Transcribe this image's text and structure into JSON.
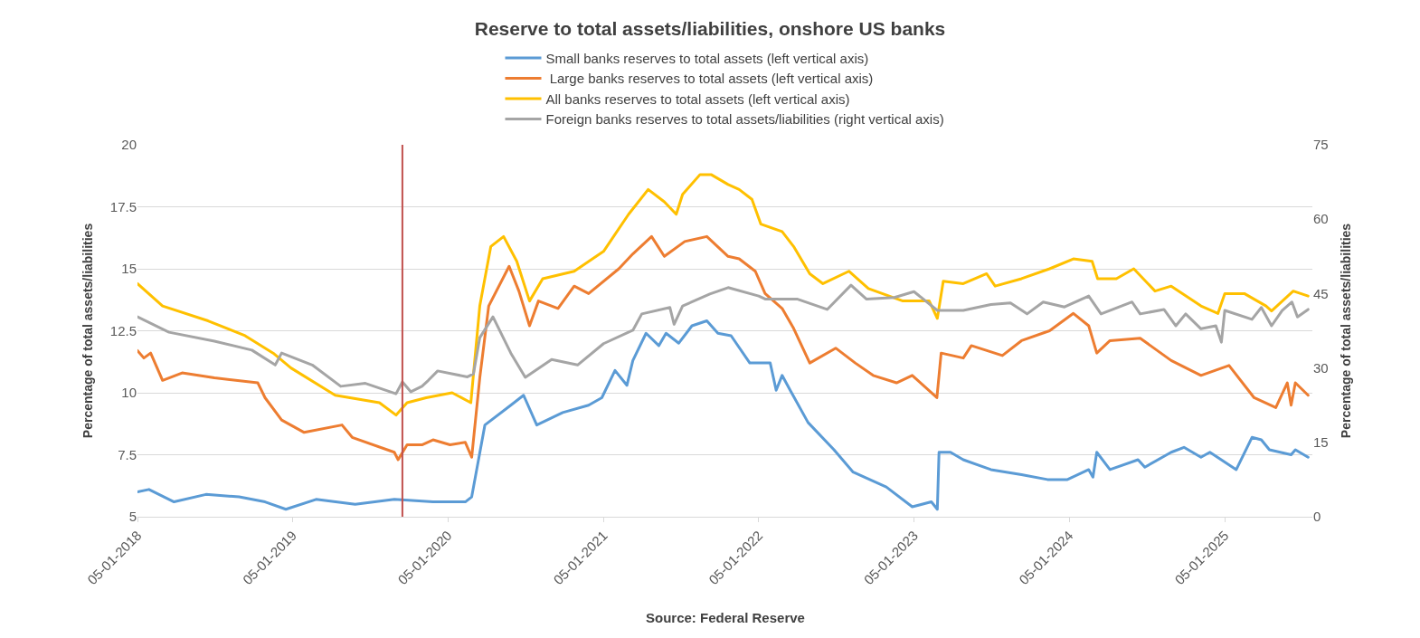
{
  "chart_data": {
    "type": "line",
    "title": "Reserve to total assets/liabilities, onshore US banks",
    "ylabel": "Percentage of total assets/liabilities",
    "y2label": "Percentage of total assets/liabilities",
    "annotations": [
      "Source: Federal Reserve"
    ],
    "legend": "top",
    "grid": "y",
    "marker": "none",
    "line_style": "solid",
    "xlim": [
      "2018-01-05",
      "2025-07-30"
    ],
    "xticks": [
      {
        "value": "2018-01-05",
        "label": "05-01-2018"
      },
      {
        "value": "2019-01-05",
        "label": "05-01-2019"
      },
      {
        "value": "2020-01-05",
        "label": "05-01-2020"
      },
      {
        "value": "2021-01-05",
        "label": "05-01-2021"
      },
      {
        "value": "2022-01-05",
        "label": "05-01-2022"
      },
      {
        "value": "2023-01-05",
        "label": "05-01-2023"
      },
      {
        "value": "2024-01-05",
        "label": "05-01-2024"
      },
      {
        "value": "2025-01-05",
        "label": "05-01-2025"
      }
    ],
    "ylim": [
      5,
      20
    ],
    "yticks": [
      5,
      {
        "value": 7.5,
        "label": "7.5"
      },
      10,
      {
        "value": 12.5,
        "label": "12.5"
      },
      15,
      {
        "value": 17.5,
        "label": "17.5"
      },
      20
    ],
    "y2lim": [
      0,
      75
    ],
    "y2ticks": [
      0,
      15,
      30,
      45,
      60,
      75
    ],
    "ref_lines": [
      {
        "axis": "x",
        "value": "2019-09-20",
        "color": "#c0504d"
      }
    ],
    "series": [
      {
        "name": "Small banks reserves to total assets (left vertical axis)",
        "color": "#5b9bd5",
        "x": [
          "2018-01-05",
          "2018-02-01",
          "2018-04-01",
          "2018-06-15",
          "2018-09-01",
          "2018-11-01",
          "2018-12-20",
          "2019-03-01",
          "2019-06-01",
          "2019-09-01",
          "2019-12-01",
          "2020-02-15",
          "2020-03-01",
          "2020-04-01",
          "2020-06-01",
          "2020-07-01",
          "2020-08-01",
          "2020-10-01",
          "2020-12-01",
          "2021-01-01",
          "2021-02-01",
          "2021-03-01",
          "2021-03-15",
          "2021-04-15",
          "2021-05-15",
          "2021-06-01",
          "2021-07-01",
          "2021-08-01",
          "2021-09-05",
          "2021-10-01",
          "2021-11-01",
          "2021-12-15",
          "2022-02-01",
          "2022-02-15",
          "2022-03-01",
          "2022-03-20",
          "2022-05-01",
          "2022-07-01",
          "2022-08-15",
          "2022-11-01",
          "2023-01-01",
          "2023-02-15",
          "2023-03-01",
          "2023-03-05",
          "2023-04-01",
          "2023-05-01",
          "2023-07-05",
          "2023-09-15",
          "2023-11-15",
          "2024-01-01",
          "2024-02-20",
          "2024-03-01",
          "2024-03-10",
          "2024-04-10",
          "2024-06-15",
          "2024-07-01",
          "2024-09-01",
          "2024-10-01",
          "2024-11-10",
          "2024-12-01",
          "2025-02-01",
          "2025-03-10",
          "2025-04-01",
          "2025-04-20",
          "2025-06-10",
          "2025-06-20",
          "2025-07-20"
        ],
        "values": [
          6.0,
          6.1,
          5.6,
          5.9,
          5.8,
          5.6,
          5.3,
          5.7,
          5.5,
          5.7,
          5.6,
          5.6,
          5.8,
          8.7,
          9.5,
          9.9,
          8.7,
          9.2,
          9.5,
          9.8,
          10.9,
          10.3,
          11.3,
          12.4,
          11.9,
          12.4,
          12.0,
          12.7,
          12.9,
          12.4,
          12.3,
          11.2,
          11.2,
          10.1,
          10.7,
          10.1,
          8.8,
          7.7,
          6.8,
          6.2,
          5.4,
          5.6,
          5.3,
          7.6,
          7.6,
          7.3,
          6.9,
          6.7,
          6.5,
          6.5,
          6.9,
          6.6,
          7.6,
          6.9,
          7.3,
          7.0,
          7.6,
          7.8,
          7.4,
          7.6,
          6.9,
          8.2,
          8.1,
          7.7,
          7.5,
          7.7,
          7.4
        ]
      },
      {
        "name": " Large banks reserves to total assets (left vertical axis)",
        "color": "#ed7d31",
        "x": [
          "2018-01-05",
          "2018-01-20",
          "2018-02-05",
          "2018-03-05",
          "2018-04-20",
          "2018-07-05",
          "2018-10-15",
          "2018-11-01",
          "2018-12-10",
          "2019-02-01",
          "2019-05-01",
          "2019-05-25",
          "2019-09-01",
          "2019-09-10",
          "2019-10-01",
          "2019-11-05",
          "2019-12-01",
          "2020-01-10",
          "2020-02-15",
          "2020-03-01",
          "2020-03-20",
          "2020-04-10",
          "2020-05-28",
          "2020-06-20",
          "2020-07-15",
          "2020-08-05",
          "2020-09-20",
          "2020-10-28",
          "2020-12-01",
          "2021-02-10",
          "2021-03-15",
          "2021-04-28",
          "2021-05-28",
          "2021-07-15",
          "2021-09-05",
          "2021-10-25",
          "2021-11-20",
          "2021-12-28",
          "2022-01-20",
          "2022-03-01",
          "2022-03-28",
          "2022-05-05",
          "2022-07-05",
          "2022-08-20",
          "2022-10-01",
          "2022-11-25",
          "2023-01-01",
          "2023-02-28",
          "2023-03-10",
          "2023-05-01",
          "2023-05-20",
          "2023-08-01",
          "2023-09-15",
          "2023-11-20",
          "2024-01-15",
          "2024-02-20",
          "2024-03-10",
          "2024-04-10",
          "2024-06-20",
          "2024-09-01",
          "2024-11-10",
          "2025-01-15",
          "2025-03-15",
          "2025-05-05",
          "2025-06-01",
          "2025-06-10",
          "2025-06-20",
          "2025-07-20"
        ],
        "values": [
          11.7,
          11.4,
          11.6,
          10.5,
          10.8,
          10.6,
          10.4,
          9.8,
          8.9,
          8.4,
          8.7,
          8.2,
          7.6,
          7.3,
          7.9,
          7.9,
          8.1,
          7.9,
          8.0,
          7.4,
          10.6,
          13.5,
          15.1,
          14.1,
          12.7,
          13.7,
          13.4,
          14.3,
          14.0,
          15.0,
          15.6,
          16.3,
          15.5,
          16.1,
          16.3,
          15.5,
          15.4,
          14.9,
          14.0,
          13.4,
          12.6,
          11.2,
          11.8,
          11.2,
          10.7,
          10.4,
          10.7,
          9.8,
          11.6,
          11.4,
          11.9,
          11.5,
          12.1,
          12.5,
          13.2,
          12.7,
          11.6,
          12.1,
          12.2,
          11.3,
          10.7,
          11.1,
          9.8,
          9.4,
          10.4,
          9.5,
          10.4,
          9.9
        ]
      },
      {
        "name": "All banks reserves to total assets (left vertical axis)",
        "color": "#ffc000",
        "x": [
          "2018-01-05",
          "2018-03-05",
          "2018-06-20",
          "2018-09-15",
          "2018-11-20",
          "2019-01-01",
          "2019-04-15",
          "2019-07-28",
          "2019-09-05",
          "2019-10-01",
          "2019-11-15",
          "2020-01-15",
          "2020-02-28",
          "2020-03-20",
          "2020-04-15",
          "2020-05-15",
          "2020-06-15",
          "2020-07-15",
          "2020-08-15",
          "2020-10-28",
          "2021-01-05",
          "2021-03-05",
          "2021-04-20",
          "2021-05-28",
          "2021-06-25",
          "2021-07-10",
          "2021-08-20",
          "2021-09-15",
          "2021-10-25",
          "2021-11-20",
          "2021-12-20",
          "2022-01-10",
          "2022-03-01",
          "2022-03-28",
          "2022-05-05",
          "2022-06-05",
          "2022-08-05",
          "2022-09-20",
          "2022-12-10",
          "2023-02-10",
          "2023-03-01",
          "2023-03-15",
          "2023-05-01",
          "2023-06-25",
          "2023-07-15",
          "2023-09-15",
          "2023-11-20",
          "2024-01-15",
          "2024-02-28",
          "2024-03-12",
          "2024-04-25",
          "2024-06-05",
          "2024-07-25",
          "2024-09-01",
          "2024-11-10",
          "2024-12-20",
          "2025-01-05",
          "2025-02-20",
          "2025-04-12",
          "2025-04-25",
          "2025-06-15",
          "2025-07-20"
        ],
        "values": [
          14.4,
          13.5,
          12.9,
          12.3,
          11.6,
          11.0,
          9.9,
          9.6,
          9.1,
          9.6,
          9.8,
          10.0,
          9.6,
          13.5,
          15.9,
          16.3,
          15.3,
          13.7,
          14.6,
          14.9,
          15.7,
          17.2,
          18.2,
          17.7,
          17.2,
          18.0,
          18.8,
          18.8,
          18.4,
          18.2,
          17.8,
          16.8,
          16.5,
          15.9,
          14.8,
          14.4,
          14.9,
          14.2,
          13.7,
          13.7,
          13.0,
          14.5,
          14.4,
          14.8,
          14.3,
          14.6,
          15.0,
          15.4,
          15.3,
          14.6,
          14.6,
          15.0,
          14.1,
          14.3,
          13.5,
          13.2,
          14.0,
          14.0,
          13.5,
          13.3,
          14.1,
          13.9
        ]
      },
      {
        "name": "Foreign banks reserves to total assets/liabilities (right vertical axis)",
        "color": "#a5a5a5",
        "axis": "y2",
        "x": [
          "2018-01-05",
          "2018-03-20",
          "2018-07-05",
          "2018-10-01",
          "2018-11-25",
          "2018-12-10",
          "2019-02-20",
          "2019-04-28",
          "2019-06-25",
          "2019-09-05",
          "2019-09-20",
          "2019-10-10",
          "2019-11-05",
          "2019-11-20",
          "2019-12-12",
          "2020-02-20",
          "2020-03-05",
          "2020-03-20",
          "2020-04-20",
          "2020-06-01",
          "2020-07-05",
          "2020-09-05",
          "2020-11-05",
          "2021-01-05",
          "2021-03-15",
          "2021-04-05",
          "2021-06-10",
          "2021-06-20",
          "2021-07-10",
          "2021-09-12",
          "2021-10-25",
          "2022-01-05",
          "2022-01-20",
          "2022-04-05",
          "2022-06-15",
          "2022-08-10",
          "2022-09-15",
          "2022-11-20",
          "2023-01-05",
          "2023-03-01",
          "2023-05-01",
          "2023-07-05",
          "2023-08-20",
          "2023-09-28",
          "2023-11-05",
          "2023-12-25",
          "2024-02-20",
          "2024-03-20",
          "2024-06-01",
          "2024-06-20",
          "2024-08-15",
          "2024-09-12",
          "2024-10-05",
          "2024-11-10",
          "2024-12-15",
          "2024-12-28",
          "2025-01-05",
          "2025-03-10",
          "2025-04-01",
          "2025-04-25",
          "2025-05-20",
          "2025-06-12",
          "2025-06-25",
          "2025-07-20"
        ],
        "values": [
          40.3,
          37.2,
          35.4,
          33.6,
          30.6,
          33.0,
          30.6,
          26.3,
          26.9,
          24.8,
          27.2,
          25.2,
          26.3,
          27.5,
          29.4,
          28.2,
          28.8,
          36.1,
          40.3,
          33.0,
          28.1,
          31.7,
          30.6,
          34.9,
          37.6,
          40.9,
          42.2,
          38.8,
          42.5,
          44.9,
          46.2,
          44.5,
          43.9,
          43.9,
          41.8,
          46.7,
          43.9,
          44.2,
          45.4,
          41.6,
          41.6,
          42.8,
          43.1,
          40.9,
          43.3,
          42.3,
          44.5,
          40.9,
          43.3,
          40.9,
          41.8,
          38.5,
          40.9,
          37.9,
          38.5,
          35.2,
          41.6,
          39.8,
          42.2,
          38.5,
          41.6,
          43.3,
          40.3,
          41.8
        ]
      }
    ]
  }
}
